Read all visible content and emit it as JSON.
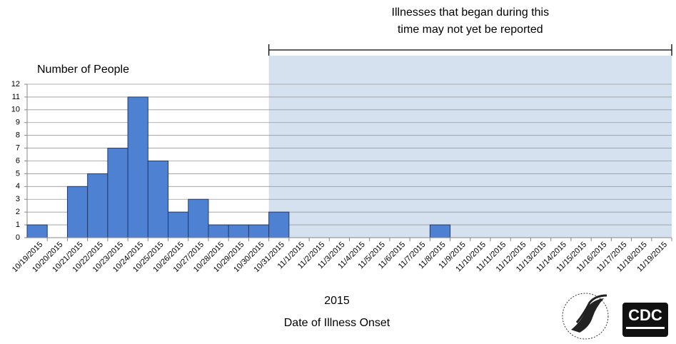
{
  "chart_data": {
    "type": "bar",
    "y_label": "Number of People",
    "x_label": "Date of Illness Onset",
    "x_sublabel": "2015",
    "annotation": [
      "Illnesses that began during this",
      "time may not yet be reported"
    ],
    "shaded_from": "10/31/2015",
    "categories": [
      "10/19/2015",
      "10/20/2015",
      "10/21/2015",
      "10/22/2015",
      "10/23/2015",
      "10/24/2015",
      "10/25/2015",
      "10/26/2015",
      "10/27/2015",
      "10/28/2015",
      "10/29/2015",
      "10/30/2015",
      "10/31/2015",
      "11/1/2015",
      "11/2/2015",
      "11/3/2015",
      "11/4/2015",
      "11/5/2015",
      "11/6/2015",
      "11/7/2015",
      "11/8/2015",
      "11/9/2015",
      "11/10/2015",
      "11/11/2015",
      "11/12/2015",
      "11/13/2015",
      "11/14/2015",
      "11/15/2015",
      "11/16/2015",
      "11/17/2015",
      "11/18/2015",
      "11/19/2015"
    ],
    "values": [
      1,
      0,
      4,
      5,
      7,
      11,
      6,
      2,
      3,
      1,
      1,
      1,
      2,
      0,
      0,
      0,
      0,
      0,
      0,
      0,
      1,
      0,
      0,
      0,
      0,
      0,
      0,
      0,
      0,
      0,
      0,
      0
    ],
    "color": "#4f81d3",
    "shade_color": "#d6e1ef",
    "ylim": [
      0,
      12
    ],
    "yticks": [
      0,
      1,
      2,
      3,
      4,
      5,
      6,
      7,
      8,
      9,
      10,
      11,
      12
    ],
    "grid": true,
    "logo": "CDC"
  }
}
